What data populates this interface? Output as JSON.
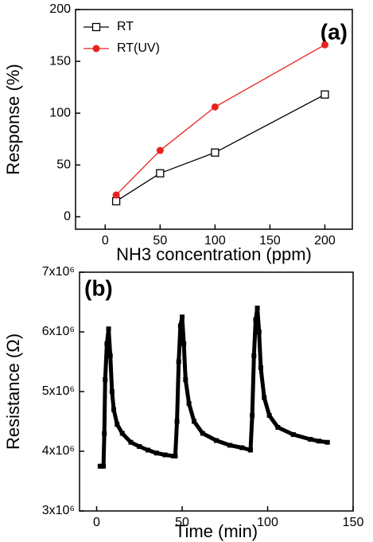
{
  "chart_data": [
    {
      "type": "line",
      "panel_label": "(a)",
      "x_label": "NH3 concentration (ppm)",
      "y_label": "Response (%)",
      "x": [
        10,
        50,
        100,
        200
      ],
      "series": [
        {
          "name": "RT",
          "color": "#000000",
          "marker": "square-open",
          "values": [
            15,
            42,
            62,
            118
          ]
        },
        {
          "name": "RT(UV)",
          "color": "#e8231f",
          "marker": "circle",
          "values": [
            21,
            64,
            106,
            166
          ]
        }
      ],
      "xlim": [
        -27,
        225
      ],
      "xticks": [
        0,
        50,
        100,
        150,
        200
      ],
      "ylim": [
        -12,
        200
      ],
      "yticks": [
        0,
        50,
        100,
        150,
        200
      ],
      "legend": "upper left"
    },
    {
      "type": "line",
      "panel_label": "(b)",
      "x_label": "Time (min)",
      "y_label": "Resistance (Ω)",
      "x": [
        2,
        3,
        4,
        4.5,
        5,
        6,
        7,
        8,
        9,
        10,
        12,
        15,
        20,
        25,
        30,
        35,
        40,
        45,
        46,
        47,
        48,
        49,
        50,
        51,
        52,
        54,
        57,
        62,
        70,
        78,
        85,
        90,
        91,
        92,
        93,
        94,
        95,
        96,
        98,
        101,
        106,
        115,
        125,
        130,
        135
      ],
      "series": [
        {
          "name": "Resistance",
          "color": "#000000",
          "marker": "square",
          "values": [
            3750000,
            3750000,
            3750000,
            4300000,
            5200000,
            5800000,
            6050000,
            5600000,
            5000000,
            4700000,
            4450000,
            4300000,
            4150000,
            4080000,
            4020000,
            3970000,
            3940000,
            3920000,
            3920000,
            4500000,
            5500000,
            6100000,
            6250000,
            5800000,
            5200000,
            4800000,
            4500000,
            4300000,
            4180000,
            4100000,
            4060000,
            4020000,
            4600000,
            5600000,
            6200000,
            6400000,
            6000000,
            5400000,
            4900000,
            4600000,
            4400000,
            4280000,
            4200000,
            4170000,
            4150000
          ]
        }
      ],
      "xlim": [
        -10,
        150
      ],
      "xticks": [
        0,
        50,
        100,
        150
      ],
      "ylim": [
        3000000,
        7000000
      ],
      "yticks": [
        {
          "value": 3000000,
          "label": "3x10⁶"
        },
        {
          "value": 4000000,
          "label": "4x10⁶"
        },
        {
          "value": 5000000,
          "label": "5x10⁶"
        },
        {
          "value": 6000000,
          "label": "6x10⁶"
        },
        {
          "value": 7000000,
          "label": "7x10⁶"
        }
      ]
    }
  ]
}
